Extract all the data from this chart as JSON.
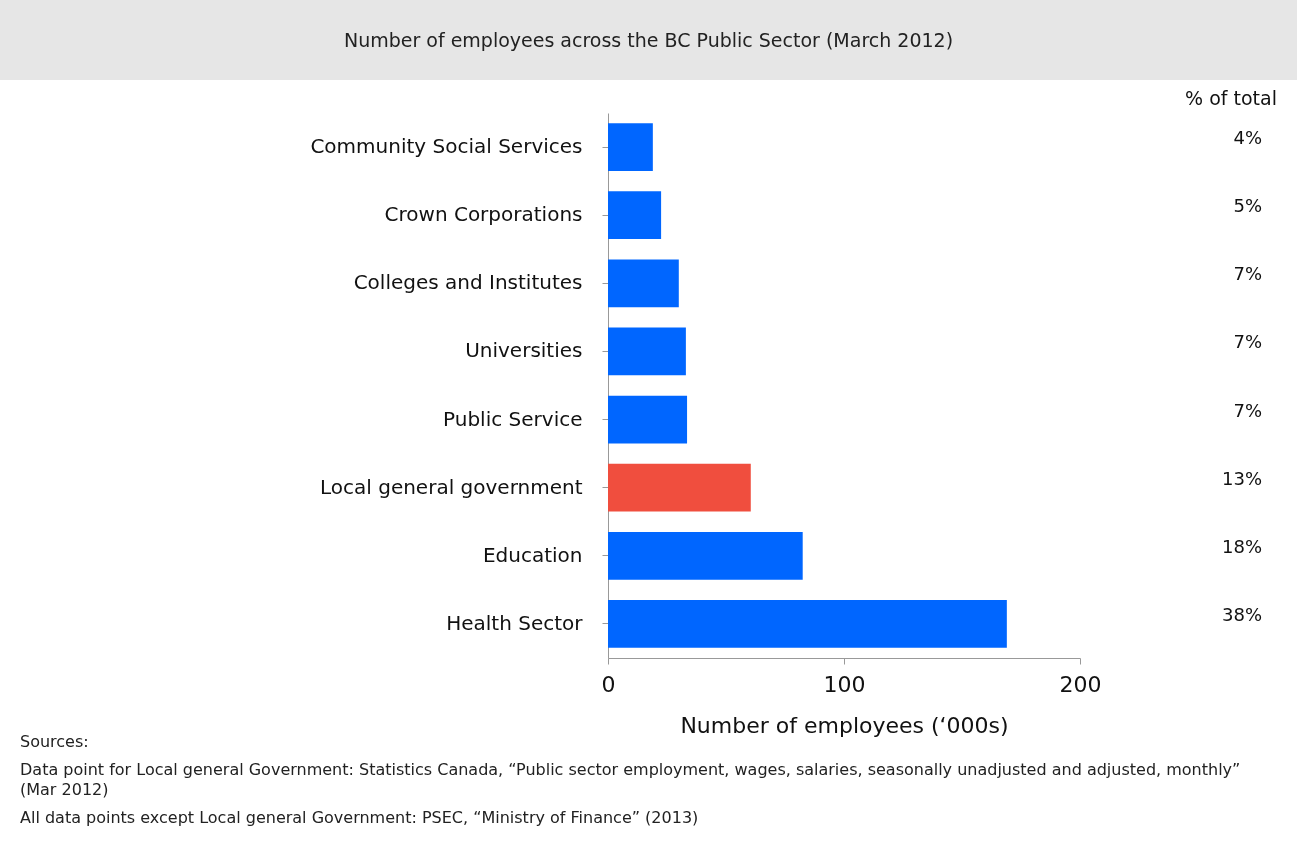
{
  "chart_data": {
    "type": "bar",
    "orientation": "horizontal",
    "title": "Number of employees across the BC Public Sector (March 2012)",
    "xlabel": "Number of employees (‘000s)",
    "categories": [
      "Community Social Services",
      "Crown Corporations",
      "Colleges and Institutes",
      "Universities",
      "Public Service",
      "Local general government",
      "Education",
      "Health Sector"
    ],
    "values": [
      19,
      22.5,
      30,
      33,
      33.5,
      60.5,
      82.5,
      169
    ],
    "colors": [
      "#0066ff",
      "#0066ff",
      "#0066ff",
      "#0066ff",
      "#0066ff",
      "#f04e3e",
      "#0066ff",
      "#0066ff"
    ],
    "xlim": [
      0,
      200
    ],
    "xticks": [
      0,
      100,
      200
    ],
    "grid": false,
    "annotations": [
      "% of total",
      "4%",
      "5%",
      "7%",
      "7%",
      "7%",
      "13%",
      "18%",
      "38%",
      "Sources:",
      "Data point for Local general Government: Statistics Canada, “Public sector employment, wages, salaries, seasonally unadjusted and adjusted, monthly” (Mar 2012)",
      "All data points except Local general Government: PSEC, “Ministry of Finance” (2013)"
    ]
  }
}
